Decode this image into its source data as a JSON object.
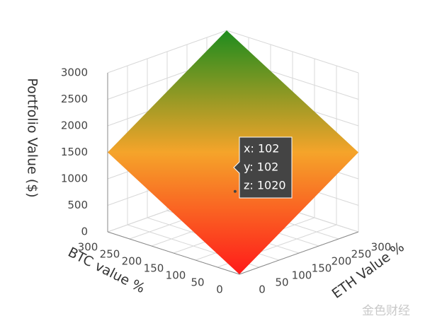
{
  "chart_data": {
    "type": "surface",
    "x_label": "BTC value %",
    "y_label": "ETH Value %",
    "z_label": "Portfolio Value ($)",
    "x": [
      0,
      300
    ],
    "y": [
      0,
      300
    ],
    "z": [
      [
        0,
        1500
      ],
      [
        1500,
        3000
      ]
    ],
    "colorscale": [
      [
        0,
        "#ff1a1a"
      ],
      [
        0.5,
        "#f5a42a"
      ],
      [
        1,
        "#1e8c1e"
      ]
    ],
    "xlim": [
      0,
      300
    ],
    "ylim": [
      0,
      300
    ],
    "zlim": [
      0,
      3000
    ],
    "xticks": [
      0,
      50,
      100,
      150,
      200,
      250,
      300
    ],
    "yticks": [
      0,
      50,
      100,
      150,
      200,
      250,
      300
    ],
    "zticks": [
      0,
      500,
      1000,
      1500,
      2000,
      2500,
      3000
    ],
    "grid": true,
    "hover": {
      "x": 102,
      "y": 102,
      "z": 1020,
      "labels": [
        "x: 102",
        "y: 102",
        "z: 1020"
      ]
    },
    "watermark": "金色财经"
  }
}
